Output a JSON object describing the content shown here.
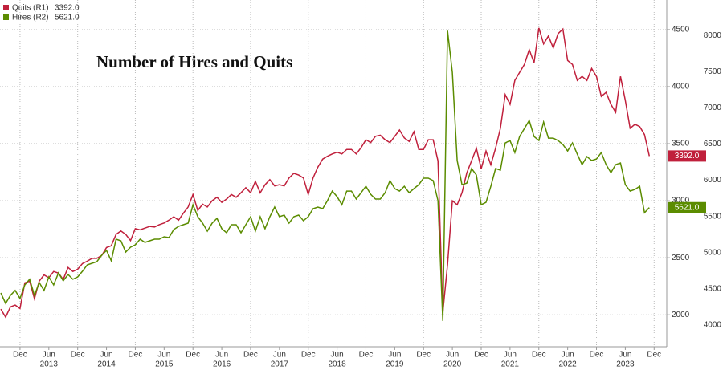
{
  "chart_data": {
    "type": "line",
    "title": "Number of Hires and Quits",
    "categories": [
      null,
      null,
      null,
      null,
      "Dec",
      null,
      null,
      null,
      null,
      null,
      "Jun",
      null,
      null,
      null,
      null,
      null,
      "Dec",
      null,
      null,
      null,
      null,
      null,
      "Jun",
      null,
      null,
      null,
      null,
      null,
      "Dec",
      null,
      null,
      null,
      null,
      null,
      "Jun",
      null,
      null,
      null,
      null,
      null,
      "Dec",
      null,
      null,
      null,
      null,
      null,
      "Jun",
      null,
      null,
      null,
      null,
      null,
      "Dec",
      null,
      null,
      null,
      null,
      null,
      "Jun",
      null,
      null,
      null,
      null,
      null,
      "Dec",
      null,
      null,
      null,
      null,
      null,
      "Jun",
      null,
      null,
      null,
      null,
      null,
      "Dec",
      null,
      null,
      null,
      null,
      null,
      "Jun",
      null,
      null,
      null,
      null,
      null,
      "Dec",
      null,
      null,
      null,
      null,
      null,
      "Jun",
      null,
      null,
      null,
      null,
      null,
      "Dec",
      null,
      null,
      null,
      null,
      null,
      "Jun",
      null,
      null,
      null,
      null,
      null,
      "Dec",
      null,
      null,
      null,
      null,
      null,
      "Jun",
      null,
      null,
      null,
      null,
      null,
      "Dec",
      null,
      null,
      null,
      null,
      null,
      "Jun",
      null,
      null,
      null,
      null,
      null,
      "Dec"
    ],
    "year_labels": [
      "2013",
      "2014",
      "2015",
      "2016",
      "2017",
      "2018",
      "2019",
      "2020",
      "2021",
      "2022",
      "2023"
    ],
    "series": [
      {
        "name": "Quits (R1)",
        "last_label": "3392.0",
        "color": "#c0203c",
        "axis": "y",
        "values": [
          2050,
          1980,
          2070,
          2085,
          2055,
          2280,
          2295,
          2140,
          2295,
          2350,
          2325,
          2380,
          2365,
          2310,
          2415,
          2380,
          2400,
          2450,
          2470,
          2495,
          2495,
          2520,
          2590,
          2605,
          2705,
          2735,
          2705,
          2650,
          2755,
          2745,
          2760,
          2775,
          2770,
          2790,
          2805,
          2830,
          2860,
          2830,
          2890,
          2945,
          3055,
          2915,
          2970,
          2945,
          3000,
          3030,
          2985,
          3015,
          3055,
          3030,
          3070,
          3115,
          3070,
          3170,
          3070,
          3140,
          3185,
          3130,
          3140,
          3130,
          3200,
          3240,
          3225,
          3200,
          3055,
          3200,
          3295,
          3365,
          3390,
          3410,
          3425,
          3410,
          3450,
          3450,
          3410,
          3465,
          3535,
          3510,
          3565,
          3575,
          3535,
          3510,
          3565,
          3620,
          3550,
          3520,
          3605,
          3450,
          3450,
          3535,
          3535,
          3350,
          2020,
          2440,
          3000,
          2965,
          3070,
          3245,
          3350,
          3460,
          3280,
          3435,
          3315,
          3460,
          3635,
          3930,
          3845,
          4055,
          4125,
          4195,
          4325,
          4210,
          4515,
          4375,
          4445,
          4340,
          4465,
          4505,
          4230,
          4195,
          4055,
          4090,
          4055,
          4160,
          4090,
          3915,
          3950,
          3845,
          3775,
          4090,
          3880,
          3635,
          3670,
          3650,
          3580,
          3392,
          null
        ]
      },
      {
        "name": "Hires (R2)",
        "last_label": "5621.0",
        "color": "#5b8c00",
        "axis": "y2",
        "values": [
          4443,
          4299,
          4410,
          4477,
          4366,
          4554,
          4632,
          4410,
          4587,
          4477,
          4665,
          4554,
          4720,
          4610,
          4698,
          4632,
          4665,
          4743,
          4831,
          4853,
          4875,
          4964,
          5031,
          4887,
          5186,
          5164,
          5008,
          5075,
          5108,
          5186,
          5141,
          5164,
          5186,
          5186,
          5219,
          5208,
          5319,
          5363,
          5385,
          5407,
          5662,
          5496,
          5407,
          5297,
          5407,
          5474,
          5330,
          5274,
          5385,
          5385,
          5274,
          5385,
          5496,
          5297,
          5496,
          5330,
          5496,
          5629,
          5496,
          5518,
          5407,
          5496,
          5518,
          5441,
          5496,
          5607,
          5629,
          5607,
          5718,
          5850,
          5773,
          5662,
          5850,
          5850,
          5740,
          5828,
          5917,
          5806,
          5740,
          5740,
          5828,
          5995,
          5884,
          5850,
          5917,
          5828,
          5884,
          5939,
          6028,
          6028,
          5995,
          5718,
          4056,
          8066,
          7490,
          6272,
          5939,
          5961,
          6161,
          6072,
          5662,
          5695,
          5917,
          6161,
          6139,
          6515,
          6548,
          6382,
          6604,
          6715,
          6826,
          6604,
          6548,
          6803,
          6582,
          6582,
          6548,
          6493,
          6404,
          6515,
          6360,
          6216,
          6327,
          6272,
          6294,
          6382,
          6216,
          6105,
          6216,
          6238,
          5939,
          5850,
          5873,
          5917,
          5552,
          5621,
          null
        ]
      }
    ],
    "ylim": [
      1720,
      4760
    ],
    "yticks": [
      2000,
      2500,
      3000,
      3500,
      4000,
      4500
    ],
    "y2lim": [
      3700,
      8490
    ],
    "y2ticks": [
      4000,
      4500,
      5000,
      5500,
      6000,
      6500,
      7000,
      7500,
      8000
    ],
    "grid": true,
    "legend": "top-left"
  }
}
